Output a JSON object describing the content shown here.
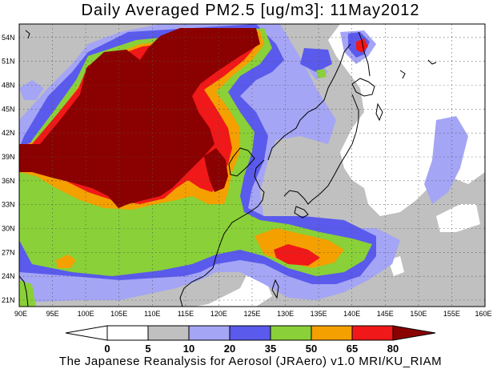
{
  "title": "Daily Averaged PM2.5 [ug/m3]: 11May2012",
  "footer": "The Japanese Reanalysis for Aerosol (JRAero) v1.0 MRI/KU_RIAM",
  "map": {
    "lon_range": [
      90,
      160
    ],
    "lat_range": [
      19.5,
      55
    ],
    "lon_ticks": [
      "90E",
      "95E",
      "100E",
      "105E",
      "110E",
      "115E",
      "120E",
      "125E",
      "130E",
      "135E",
      "140E",
      "145E",
      "150E",
      "155E",
      "160E"
    ],
    "lat_ticks": [
      "21N",
      "24N",
      "27N",
      "30N",
      "33N",
      "36N",
      "39N",
      "42N",
      "45N",
      "48N",
      "51N",
      "54N"
    ],
    "grid": true
  },
  "colorbar": {
    "labels": [
      "0",
      "5",
      "10",
      "20",
      "35",
      "50",
      "65",
      "80"
    ],
    "colors": {
      "below_0": "#ffffff",
      "0_5": "#ffffff",
      "5_10": "#c0c0c0",
      "10_20": "#a5a5f5",
      "20_35": "#5a5aed",
      "35_50": "#8ad038",
      "50_65": "#f4a000",
      "65_80": "#f01818",
      "above_80": "#8b0000"
    }
  }
}
